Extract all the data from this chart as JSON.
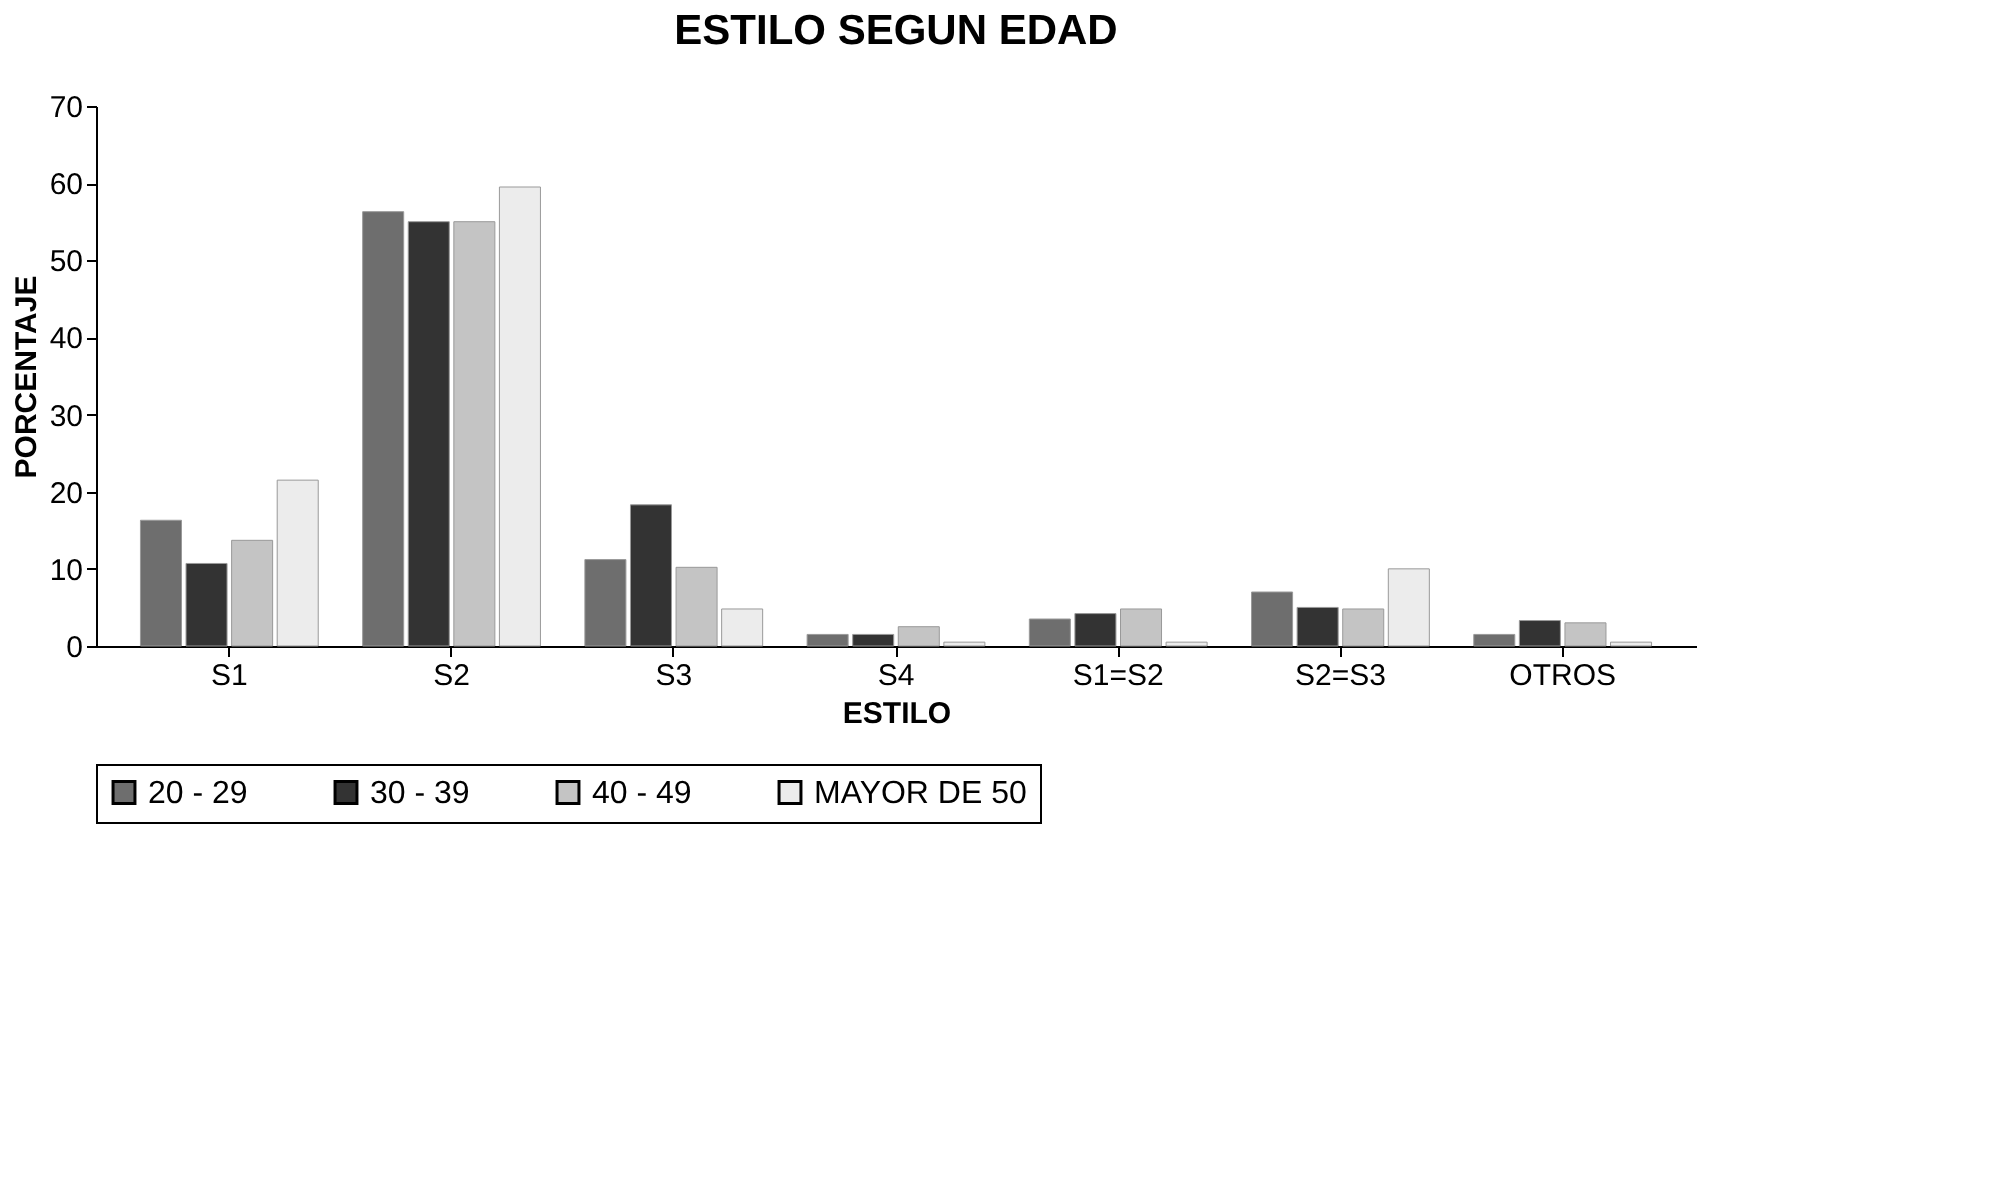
{
  "chart_data": {
    "type": "bar",
    "title": "ESTILO SEGUN EDAD",
    "xlabel": "ESTILO",
    "ylabel": "PORCENTAJE",
    "categories": [
      "S1",
      "S2",
      "S3",
      "S4",
      "S1=S2",
      "S2=S3",
      "OTROS"
    ],
    "series": [
      {
        "name": "20 - 29",
        "color": "#6e6e6e",
        "values": [
          16.3,
          56.3,
          11.2,
          1.5,
          3.5,
          7.0,
          1.5
        ]
      },
      {
        "name": "30 - 39",
        "color": "#333333",
        "values": [
          10.7,
          55.0,
          18.3,
          1.5,
          4.2,
          5.0,
          3.3
        ]
      },
      {
        "name": "40 - 49",
        "color": "#c4c4c4",
        "values": [
          13.7,
          55.0,
          10.2,
          2.5,
          4.8,
          4.8,
          3.0
        ]
      },
      {
        "name": "MAYOR DE 50",
        "color": "#ececec",
        "values": [
          21.5,
          59.5,
          4.8,
          0.5,
          0.5,
          10.0,
          0.5
        ]
      }
    ],
    "ylim": [
      0,
      70
    ],
    "yticks": [
      0,
      10,
      20,
      30,
      40,
      50,
      60,
      70
    ],
    "grid": false,
    "legend": "bottom"
  }
}
